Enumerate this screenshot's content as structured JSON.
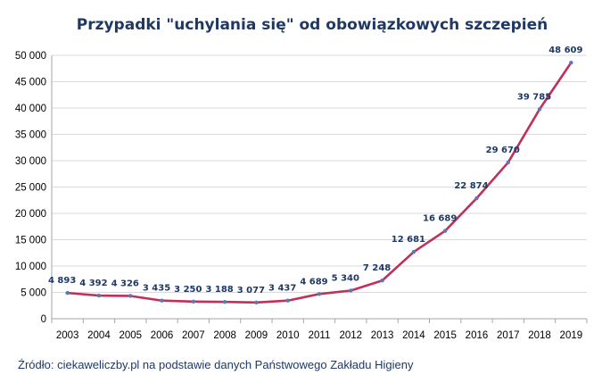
{
  "chart_data": {
    "type": "line",
    "title": "Przypadki \"uchylania się\" od obowiązkowych szczepień",
    "xlabel": "",
    "ylabel": "",
    "x": [
      "2003",
      "2004",
      "2005",
      "2006",
      "2007",
      "2008",
      "2009",
      "2010",
      "2011",
      "2012",
      "2013",
      "2014",
      "2015",
      "2016",
      "2017",
      "2018",
      "2019"
    ],
    "series": [
      {
        "values": [
          4893,
          4392,
          4326,
          3435,
          3250,
          3188,
          3077,
          3437,
          4689,
          5340,
          7248,
          12681,
          16689,
          22874,
          29670,
          39785,
          48609
        ],
        "labels": [
          "4 893",
          "4 392",
          "4 326",
          "3 435",
          "3 250",
          "3 188",
          "3 077",
          "3 437",
          "4 689",
          "5 340",
          "7 248",
          "12 681",
          "16 689",
          "22 874",
          "29 670",
          "39 785",
          "48 609"
        ]
      }
    ],
    "ylim": [
      0,
      50000
    ],
    "yticks": [
      0,
      5000,
      10000,
      15000,
      20000,
      25000,
      30000,
      35000,
      40000,
      45000,
      50000
    ],
    "ytick_labels": [
      "0",
      "5 000",
      "10 000",
      "15 000",
      "20 000",
      "25 000",
      "30 000",
      "35 000",
      "40 000",
      "45 000",
      "50 000"
    ],
    "grid": true,
    "legend": "none",
    "colors": {
      "line": "#c0305a",
      "marker": "#5a79b8",
      "grid": "#d9d9d9",
      "title": "#1f3864",
      "labels": "#1f3864"
    }
  },
  "source": "Źródło: ciekaweliczby.pl na podstawie danych Państwowego Zakładu Higieny"
}
